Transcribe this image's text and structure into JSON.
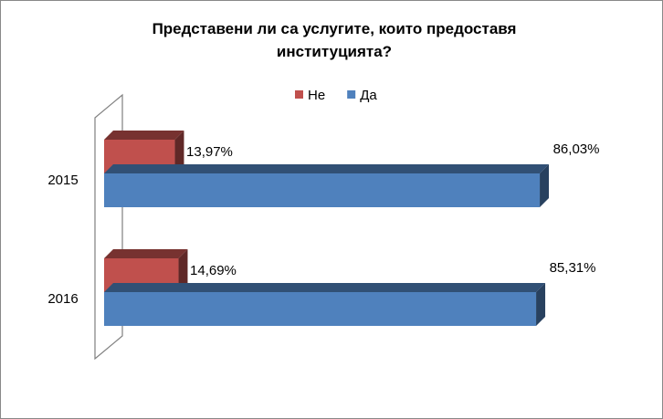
{
  "chart_data": {
    "type": "bar3d",
    "title": "Представени ли са услугите, които предоставя институцията?",
    "categories": [
      "2015",
      "2016"
    ],
    "series": [
      {
        "name": "Не",
        "color": "#c0504d",
        "values": [
          13.97,
          14.69
        ],
        "value_labels": [
          "13,97%",
          "14,69%"
        ]
      },
      {
        "name": "Да",
        "color": "#4f81bd",
        "values": [
          86.03,
          85.31
        ],
        "value_labels": [
          "86,03%",
          "85,31%"
        ]
      }
    ],
    "legend": "top"
  }
}
